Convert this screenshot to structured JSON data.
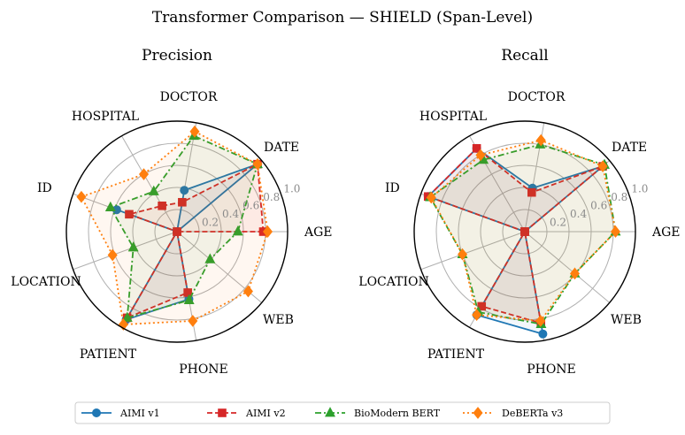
{
  "colors": {
    "AIMI v1": "#1f77b4",
    "AIMI v2": "#d62728",
    "BioModern BERT": "#2ca02c",
    "DeBERTa v3": "#ff7f0e"
  },
  "chart_data": [
    {
      "type": "radar",
      "suptitle": "Transformer Comparison — SHIELD (Span-Level)",
      "title": "Precision",
      "categories": [
        "AGE",
        "DATE",
        "DOCTOR",
        "HOSPITAL",
        "ID",
        "LOCATION",
        "PATIENT",
        "PHONE",
        "WEB"
      ],
      "rlim": [
        0,
        1.0
      ],
      "rticks": [
        "0.2",
        "0.4",
        "0.6",
        "0.8",
        "1.0"
      ],
      "grid": true,
      "series": [
        {
          "name": "AIMI v1",
          "style": "solid",
          "marker": "circle",
          "values": [
            0.0,
            0.95,
            0.38,
            0.0,
            0.58,
            0.0,
            0.92,
            0.62,
            0.0
          ]
        },
        {
          "name": "AIMI v2",
          "style": "dashed",
          "marker": "square",
          "values": [
            0.78,
            0.95,
            0.27,
            0.27,
            0.46,
            0.0,
            0.9,
            0.56,
            0.0
          ]
        },
        {
          "name": "BioModern BERT",
          "style": "dashdot",
          "marker": "triangle",
          "values": [
            0.55,
            0.95,
            0.88,
            0.42,
            0.64,
            0.42,
            0.9,
            0.63,
            0.39
          ]
        },
        {
          "name": "DeBERTa v3",
          "style": "dotted",
          "marker": "diamond",
          "values": [
            0.82,
            0.95,
            0.92,
            0.6,
            0.92,
            0.62,
            0.97,
            0.82,
            0.84
          ]
        }
      ]
    },
    {
      "type": "radar",
      "title": "Recall",
      "categories": [
        "AGE",
        "DATE",
        "DOCTOR",
        "HOSPITAL",
        "ID",
        "LOCATION",
        "PATIENT",
        "PHONE",
        "WEB"
      ],
      "rlim": [
        0,
        1.0
      ],
      "rticks": [
        "0.2",
        "0.4",
        "0.6",
        "0.8",
        "1.0"
      ],
      "grid": true,
      "series": [
        {
          "name": "AIMI v1",
          "style": "solid",
          "marker": "circle",
          "values": [
            0.0,
            0.92,
            0.4,
            0.87,
            0.93,
            0.0,
            0.87,
            0.94,
            0.0
          ]
        },
        {
          "name": "AIMI v2",
          "style": "dashed",
          "marker": "square",
          "values": [
            0.0,
            0.92,
            0.36,
            0.87,
            0.93,
            0.0,
            0.78,
            0.84,
            0.0
          ]
        },
        {
          "name": "BioModern BERT",
          "style": "dashdot",
          "marker": "triangle",
          "values": [
            0.82,
            0.94,
            0.8,
            0.75,
            0.91,
            0.6,
            0.84,
            0.85,
            0.59
          ]
        },
        {
          "name": "DeBERTa v3",
          "style": "dotted",
          "marker": "diamond",
          "values": [
            0.82,
            0.92,
            0.84,
            0.8,
            0.9,
            0.6,
            0.87,
            0.82,
            0.59
          ]
        }
      ]
    }
  ]
}
